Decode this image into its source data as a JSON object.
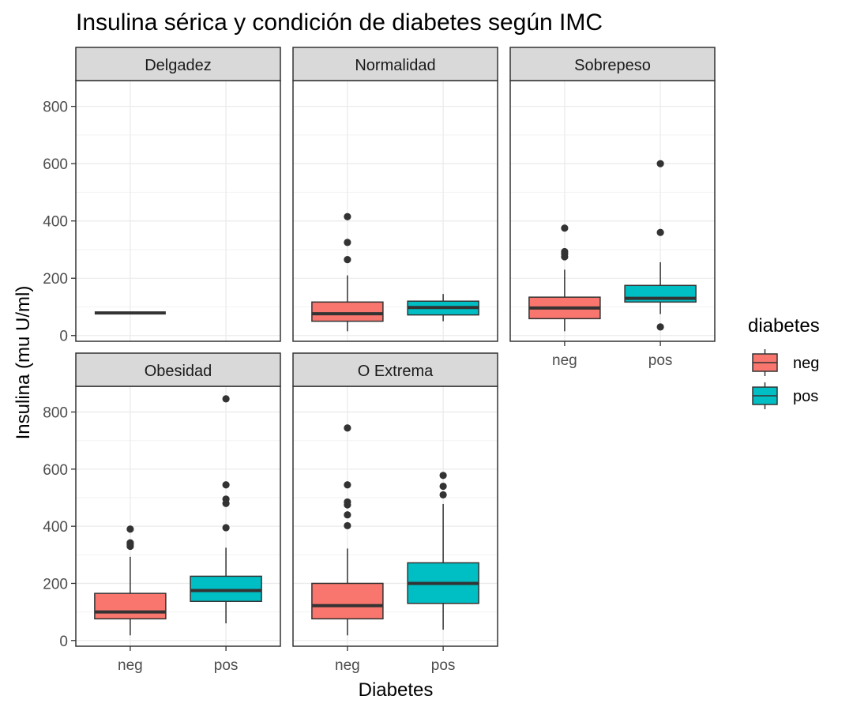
{
  "chart_data": {
    "type": "boxplot",
    "title": "Insulina sérica y condición de diabetes según IMC",
    "xlabel": "Diabetes",
    "ylabel": "Insulina (mu U/ml)",
    "ylim": [
      -20,
      890
    ],
    "yticks": [
      0,
      200,
      400,
      600,
      800
    ],
    "categories": [
      "neg",
      "pos"
    ],
    "grid": true,
    "legend": {
      "title": "diabetes",
      "position": "right",
      "entries": [
        {
          "label": "neg",
          "color": "#F8766D"
        },
        {
          "label": "pos",
          "color": "#00BFC4"
        }
      ]
    },
    "panels": [
      {
        "name": "Delgadez",
        "boxes": [
          {
            "category": "neg",
            "min": 79,
            "q1": 79,
            "median": 79,
            "q3": 79,
            "max": 79,
            "outliers": []
          }
        ]
      },
      {
        "name": "Normalidad",
        "boxes": [
          {
            "category": "neg",
            "min": 15,
            "q1": 50,
            "median": 76,
            "q3": 117,
            "max": 210,
            "outliers": [
              265,
              325,
              415
            ]
          },
          {
            "category": "pos",
            "min": 50,
            "q1": 72,
            "median": 98,
            "q3": 120,
            "max": 145,
            "outliers": []
          }
        ]
      },
      {
        "name": "Sobrepeso",
        "boxes": [
          {
            "category": "neg",
            "min": 15,
            "q1": 59,
            "median": 96,
            "q3": 134,
            "max": 230,
            "outliers": [
              275,
              285,
              293,
              375
            ]
          },
          {
            "category": "pos",
            "min": 75,
            "q1": 117,
            "median": 130,
            "q3": 175,
            "max": 256,
            "outliers": [
              30,
              360,
              600
            ]
          }
        ]
      },
      {
        "name": "Obesidad",
        "boxes": [
          {
            "category": "neg",
            "min": 18,
            "q1": 76,
            "median": 100,
            "q3": 165,
            "max": 293,
            "outliers": [
              330,
              336,
              342,
              390
            ]
          },
          {
            "category": "pos",
            "min": 60,
            "q1": 137,
            "median": 175,
            "q3": 225,
            "max": 325,
            "outliers": [
              395,
              480,
              495,
              545,
              846
            ]
          }
        ]
      },
      {
        "name": "O Extrema",
        "boxes": [
          {
            "category": "neg",
            "min": 18,
            "q1": 76,
            "median": 122,
            "q3": 200,
            "max": 322,
            "outliers": [
              402,
              440,
              475,
              485,
              545,
              744
            ]
          },
          {
            "category": "pos",
            "min": 38,
            "q1": 130,
            "median": 200,
            "q3": 272,
            "max": 478,
            "outliers": [
              510,
              540,
              578
            ]
          }
        ]
      }
    ]
  }
}
